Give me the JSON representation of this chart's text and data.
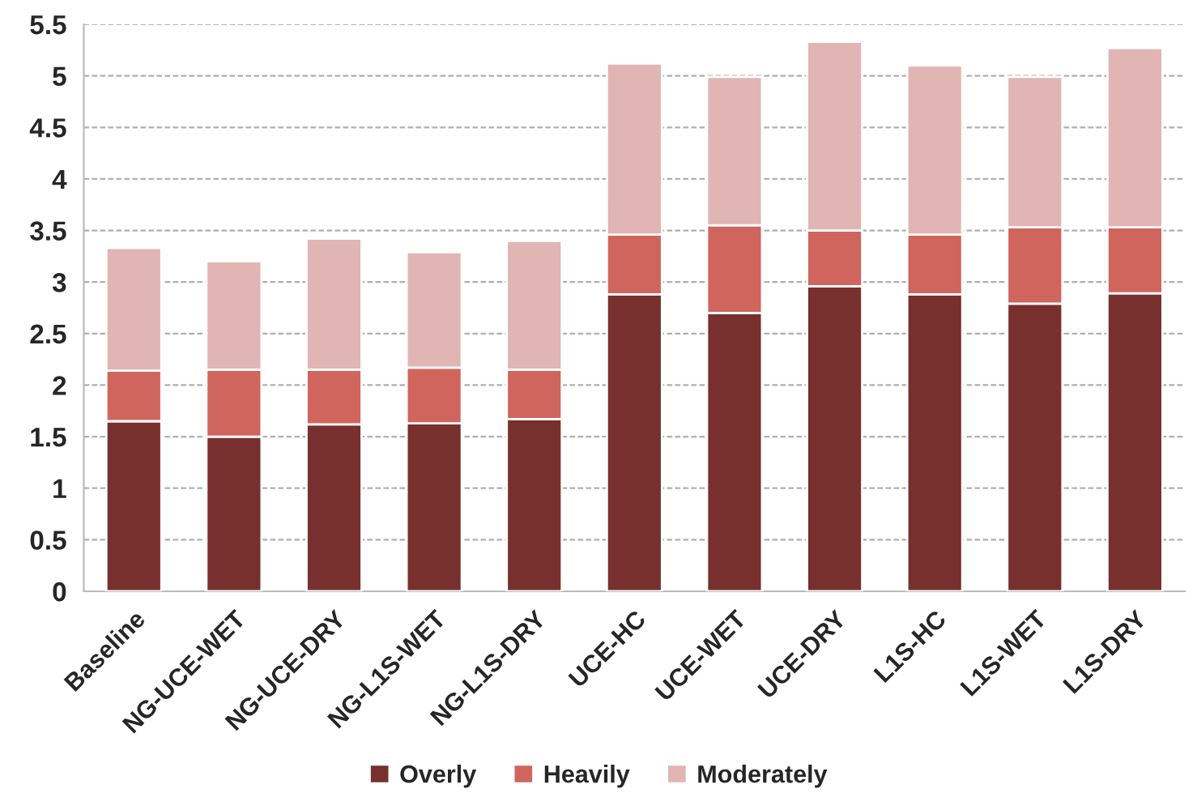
{
  "chart_data": {
    "type": "bar",
    "stacked": true,
    "categories": [
      "Baseline",
      "NG-UCE-WET",
      "NG-UCE-DRY",
      "NG-L1S-WET",
      "NG-L1S-DRY",
      "UCE-HC",
      "UCE-WET",
      "UCE-DRY",
      "L1S-HC",
      "L1S-WET",
      "L1S-DRY"
    ],
    "series": [
      {
        "name": "Overly",
        "color": "#77302e",
        "values": [
          1.65,
          1.5,
          1.62,
          1.63,
          1.67,
          2.88,
          2.7,
          2.96,
          2.88,
          2.79,
          2.89
        ]
      },
      {
        "name": "Heavily",
        "color": "#d0655e",
        "values": [
          0.49,
          0.65,
          0.53,
          0.54,
          0.48,
          0.58,
          0.85,
          0.54,
          0.58,
          0.74,
          0.64
        ]
      },
      {
        "name": "Moderately",
        "color": "#e0b5b3",
        "values": [
          1.19,
          1.05,
          1.27,
          1.12,
          1.25,
          1.66,
          1.44,
          1.83,
          1.64,
          1.46,
          1.74
        ]
      }
    ],
    "ylim": [
      0,
      5.5
    ],
    "yticks": [
      0,
      0.5,
      1,
      1.5,
      2,
      2.5,
      3,
      3.5,
      4,
      4.5,
      5,
      5.5
    ],
    "grid": "y",
    "legend": "bottom"
  }
}
